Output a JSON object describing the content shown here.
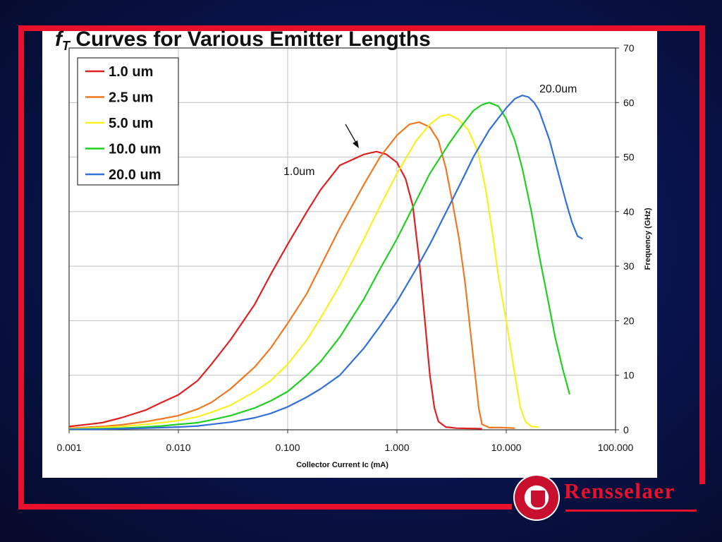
{
  "slide": {
    "title_main": "f",
    "title_sub": "T",
    "title_rest": " Curves for Various Emitter Lengths",
    "logo_text": "Rensselaer",
    "colors": {
      "background": "#0a1550",
      "frame": "#e8102a",
      "panel": "#ffffff"
    }
  },
  "chart_data": {
    "type": "line",
    "title": "fT Curves for Various Emitter Lengths",
    "xlabel": "Collector Current Ic (mA)",
    "ylabel": "Frequency (GHz)",
    "x_scale": "log",
    "xlim": [
      0.001,
      100
    ],
    "ylim": [
      0,
      70
    ],
    "x_ticks": [
      0.001,
      0.01,
      0.1,
      1,
      10,
      100
    ],
    "x_tick_labels": [
      "0.001",
      "0.010",
      "0.100",
      "1.000",
      "10.000",
      "100.000"
    ],
    "y_ticks": [
      0,
      10,
      20,
      30,
      40,
      50,
      60,
      70
    ],
    "y_tick_labels": [
      "0",
      "10",
      "20",
      "30",
      "40",
      "50",
      "60",
      "70"
    ],
    "y_axis_side": "right",
    "grid": true,
    "legend_position": "top-left",
    "series": [
      {
        "name": "1.0 um",
        "color": "#e02020",
        "points": [
          [
            0.001,
            0.6
          ],
          [
            0.002,
            1.3
          ],
          [
            0.003,
            2.2
          ],
          [
            0.005,
            3.6
          ],
          [
            0.007,
            5.0
          ],
          [
            0.01,
            6.4
          ],
          [
            0.015,
            9.0
          ],
          [
            0.02,
            12.0
          ],
          [
            0.03,
            16.5
          ],
          [
            0.05,
            23.0
          ],
          [
            0.07,
            28.5
          ],
          [
            0.1,
            34.0
          ],
          [
            0.15,
            40.0
          ],
          [
            0.2,
            44.0
          ],
          [
            0.3,
            48.5
          ],
          [
            0.5,
            50.5
          ],
          [
            0.65,
            51.0
          ],
          [
            0.8,
            50.5
          ],
          [
            1.0,
            49.0
          ],
          [
            1.2,
            46.0
          ],
          [
            1.4,
            41.0
          ],
          [
            1.6,
            31.0
          ],
          [
            1.8,
            20.0
          ],
          [
            2.0,
            10.0
          ],
          [
            2.2,
            4.0
          ],
          [
            2.4,
            1.5
          ],
          [
            2.8,
            0.5
          ],
          [
            3.5,
            0.3
          ],
          [
            6.0,
            0.2
          ]
        ]
      },
      {
        "name": "2.5 um",
        "color": "#f07820",
        "points": [
          [
            0.001,
            0.3
          ],
          [
            0.002,
            0.6
          ],
          [
            0.003,
            0.9
          ],
          [
            0.005,
            1.5
          ],
          [
            0.007,
            2.0
          ],
          [
            0.01,
            2.6
          ],
          [
            0.015,
            3.8
          ],
          [
            0.02,
            5.0
          ],
          [
            0.03,
            7.5
          ],
          [
            0.05,
            11.5
          ],
          [
            0.07,
            15.0
          ],
          [
            0.1,
            19.5
          ],
          [
            0.15,
            25.0
          ],
          [
            0.2,
            30.0
          ],
          [
            0.3,
            37.0
          ],
          [
            0.5,
            45.0
          ],
          [
            0.7,
            50.0
          ],
          [
            1.0,
            54.0
          ],
          [
            1.3,
            56.0
          ],
          [
            1.6,
            56.4
          ],
          [
            2.0,
            55.5
          ],
          [
            2.4,
            53.0
          ],
          [
            2.8,
            48.0
          ],
          [
            3.2,
            42.0
          ],
          [
            3.7,
            35.0
          ],
          [
            4.2,
            27.0
          ],
          [
            4.7,
            18.0
          ],
          [
            5.2,
            10.0
          ],
          [
            5.6,
            4.0
          ],
          [
            6.0,
            1.0
          ],
          [
            7.0,
            0.4
          ],
          [
            9.0,
            0.4
          ],
          [
            12.0,
            0.3
          ]
        ]
      },
      {
        "name": "5.0 um",
        "color": "#f8f020",
        "points": [
          [
            0.001,
            0.2
          ],
          [
            0.002,
            0.4
          ],
          [
            0.003,
            0.6
          ],
          [
            0.005,
            1.0
          ],
          [
            0.007,
            1.3
          ],
          [
            0.01,
            1.7
          ],
          [
            0.015,
            2.4
          ],
          [
            0.02,
            3.2
          ],
          [
            0.03,
            4.5
          ],
          [
            0.05,
            7.0
          ],
          [
            0.07,
            9.0
          ],
          [
            0.1,
            12.0
          ],
          [
            0.15,
            16.5
          ],
          [
            0.2,
            20.5
          ],
          [
            0.3,
            26.5
          ],
          [
            0.5,
            35.0
          ],
          [
            0.7,
            41.0
          ],
          [
            1.0,
            47.0
          ],
          [
            1.5,
            53.0
          ],
          [
            2.0,
            56.0
          ],
          [
            2.5,
            57.5
          ],
          [
            3.0,
            57.8
          ],
          [
            3.6,
            57.0
          ],
          [
            4.5,
            55.0
          ],
          [
            5.5,
            51.0
          ],
          [
            6.5,
            44.0
          ],
          [
            7.5,
            36.0
          ],
          [
            8.5,
            28.0
          ],
          [
            10.0,
            20.0
          ],
          [
            12.0,
            10.0
          ],
          [
            13.5,
            4.0
          ],
          [
            15.0,
            1.5
          ],
          [
            17.0,
            0.6
          ],
          [
            20.0,
            0.5
          ]
        ]
      },
      {
        "name": "10.0 um",
        "color": "#20d020",
        "points": [
          [
            0.001,
            0.1
          ],
          [
            0.002,
            0.2
          ],
          [
            0.003,
            0.3
          ],
          [
            0.005,
            0.5
          ],
          [
            0.007,
            0.7
          ],
          [
            0.01,
            1.0
          ],
          [
            0.015,
            1.3
          ],
          [
            0.02,
            1.8
          ],
          [
            0.03,
            2.6
          ],
          [
            0.05,
            4.0
          ],
          [
            0.07,
            5.3
          ],
          [
            0.1,
            7.0
          ],
          [
            0.15,
            10.0
          ],
          [
            0.2,
            12.5
          ],
          [
            0.3,
            17.0
          ],
          [
            0.5,
            24.0
          ],
          [
            0.7,
            29.5
          ],
          [
            1.0,
            35.0
          ],
          [
            1.5,
            42.0
          ],
          [
            2.0,
            47.0
          ],
          [
            3.0,
            52.5
          ],
          [
            4.0,
            56.0
          ],
          [
            5.0,
            58.5
          ],
          [
            6.0,
            59.6
          ],
          [
            7.0,
            60.0
          ],
          [
            8.5,
            59.3
          ],
          [
            10.0,
            57.0
          ],
          [
            12.0,
            53.0
          ],
          [
            14.0,
            48.0
          ],
          [
            17.0,
            40.0
          ],
          [
            20.0,
            32.0
          ],
          [
            24.0,
            24.0
          ],
          [
            28.0,
            17.0
          ],
          [
            33.0,
            11.0
          ],
          [
            38.0,
            6.5
          ]
        ]
      },
      {
        "name": "20.0 um",
        "color": "#3070d8",
        "points": [
          [
            0.001,
            0.1
          ],
          [
            0.002,
            0.1
          ],
          [
            0.003,
            0.2
          ],
          [
            0.005,
            0.3
          ],
          [
            0.007,
            0.4
          ],
          [
            0.01,
            0.5
          ],
          [
            0.015,
            0.7
          ],
          [
            0.02,
            1.0
          ],
          [
            0.03,
            1.4
          ],
          [
            0.05,
            2.2
          ],
          [
            0.07,
            3.0
          ],
          [
            0.1,
            4.2
          ],
          [
            0.15,
            6.0
          ],
          [
            0.2,
            7.5
          ],
          [
            0.3,
            10.0
          ],
          [
            0.5,
            15.0
          ],
          [
            0.7,
            19.0
          ],
          [
            1.0,
            23.5
          ],
          [
            1.5,
            29.5
          ],
          [
            2.0,
            34.0
          ],
          [
            3.0,
            41.0
          ],
          [
            4.0,
            46.0
          ],
          [
            5.0,
            50.0
          ],
          [
            7.0,
            55.0
          ],
          [
            10.0,
            59.0
          ],
          [
            12.0,
            60.7
          ],
          [
            14.0,
            61.3
          ],
          [
            16.0,
            61.0
          ],
          [
            18.0,
            60.0
          ],
          [
            20.0,
            58.5
          ],
          [
            25.0,
            53.0
          ],
          [
            30.0,
            47.0
          ],
          [
            35.0,
            42.0
          ],
          [
            40.0,
            38.0
          ],
          [
            45.0,
            35.5
          ],
          [
            50.0,
            35.0
          ]
        ]
      }
    ],
    "annotations": [
      {
        "text": "1.0um",
        "at": [
          0.3,
          46.0
        ]
      },
      {
        "text": "20.0um",
        "at": [
          21.0,
          62.0
        ]
      }
    ]
  }
}
